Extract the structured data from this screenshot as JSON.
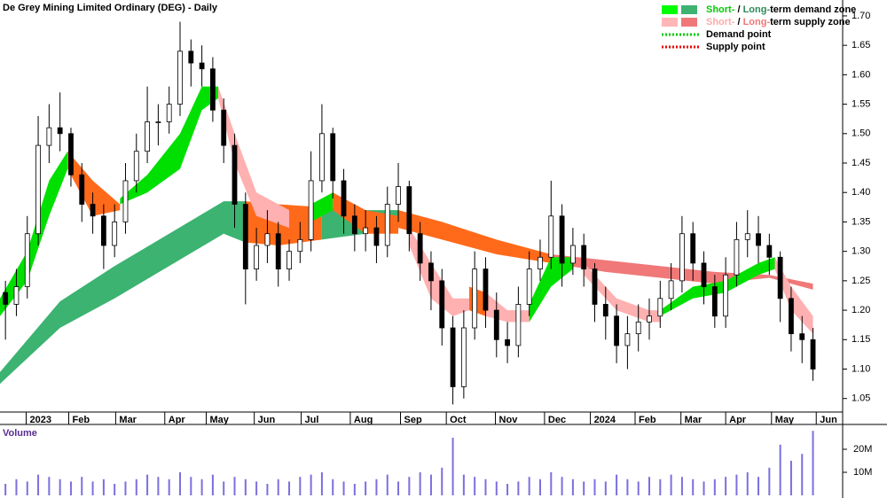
{
  "chart_data": {
    "type": "candlestick",
    "title": "De Grey Mining Limited Ordinary (DEG) - Daily",
    "xlim": [
      -0.5,
      75.5
    ],
    "xticks": [
      {
        "value": 1.9,
        "label": "2023"
      },
      {
        "value": 5.8,
        "label": "Feb"
      },
      {
        "value": 10.1,
        "label": "Mar"
      },
      {
        "value": 14.6,
        "label": "Apr"
      },
      {
        "value": 18.4,
        "label": "May"
      },
      {
        "value": 22.8,
        "label": "Jun"
      },
      {
        "value": 27.1,
        "label": "Jul"
      },
      {
        "value": 31.6,
        "label": "Aug"
      },
      {
        "value": 36.2,
        "label": "Sep"
      },
      {
        "value": 40.4,
        "label": "Oct"
      },
      {
        "value": 44.9,
        "label": "Nov"
      },
      {
        "value": 49.4,
        "label": "Dec"
      },
      {
        "value": 53.6,
        "label": "2024"
      },
      {
        "value": 57.7,
        "label": "Feb"
      },
      {
        "value": 61.9,
        "label": "Mar"
      },
      {
        "value": 66.0,
        "label": "Apr"
      },
      {
        "value": 70.2,
        "label": "May"
      },
      {
        "value": 74.3,
        "label": "Jun"
      }
    ],
    "ylim": [
      1.027,
      1.727
    ],
    "yticks": [
      {
        "value": 1.7,
        "label": "1.70"
      },
      1.65,
      {
        "value": 1.6,
        "label": "1.60"
      },
      1.55,
      {
        "value": 1.5,
        "label": "1.50"
      },
      1.45,
      {
        "value": 1.4,
        "label": "1.40"
      },
      1.35,
      {
        "value": 1.3,
        "label": "1.30"
      },
      1.25,
      {
        "value": 1.2,
        "label": "1.20"
      },
      1.15,
      {
        "value": 1.1,
        "label": "1.10"
      },
      1.05
    ],
    "up_color": "#ffffff",
    "down_color": "#000000",
    "open": [
      1.23,
      1.21,
      1.24,
      1.33,
      1.48,
      1.51,
      1.5,
      1.43,
      1.38,
      1.36,
      1.31,
      1.35,
      1.42,
      1.47,
      1.52,
      1.52,
      1.55,
      1.64,
      1.62,
      1.61,
      1.54,
      1.48,
      1.38,
      1.27,
      1.31,
      1.33,
      1.27,
      1.3,
      1.32,
      1.42,
      1.5,
      1.42,
      1.36,
      1.33,
      1.34,
      1.31,
      1.38,
      1.41,
      1.33,
      1.28,
      1.25,
      1.17,
      1.07,
      1.17,
      1.27,
      1.2,
      1.15,
      1.14,
      1.21,
      1.27,
      1.29,
      1.36,
      1.28,
      1.31,
      1.27,
      1.21,
      1.19,
      1.14,
      1.16,
      1.18,
      1.19,
      1.22,
      1.25,
      1.33,
      1.28,
      1.24,
      1.19,
      1.26,
      1.32,
      1.33,
      1.31,
      1.29,
      1.22,
      1.16,
      1.15
    ],
    "high": [
      1.25,
      1.27,
      1.36,
      1.53,
      1.55,
      1.57,
      1.51,
      1.45,
      1.4,
      1.38,
      1.38,
      1.45,
      1.5,
      1.58,
      1.55,
      1.58,
      1.69,
      1.66,
      1.65,
      1.63,
      1.56,
      1.5,
      1.4,
      1.34,
      1.37,
      1.35,
      1.32,
      1.35,
      1.47,
      1.55,
      1.51,
      1.44,
      1.38,
      1.37,
      1.36,
      1.41,
      1.45,
      1.42,
      1.35,
      1.3,
      1.27,
      1.19,
      1.2,
      1.3,
      1.29,
      1.23,
      1.18,
      1.24,
      1.3,
      1.32,
      1.42,
      1.38,
      1.34,
      1.33,
      1.28,
      1.24,
      1.21,
      1.19,
      1.21,
      1.22,
      1.25,
      1.28,
      1.36,
      1.35,
      1.3,
      1.26,
      1.29,
      1.35,
      1.37,
      1.36,
      1.33,
      1.3,
      1.24,
      1.19,
      1.17
    ],
    "low": [
      1.15,
      1.19,
      1.22,
      1.31,
      1.45,
      1.47,
      1.41,
      1.35,
      1.33,
      1.27,
      1.29,
      1.33,
      1.4,
      1.45,
      1.48,
      1.5,
      1.53,
      1.58,
      1.58,
      1.52,
      1.45,
      1.34,
      1.21,
      1.25,
      1.28,
      1.24,
      1.25,
      1.28,
      1.3,
      1.4,
      1.39,
      1.33,
      1.3,
      1.3,
      1.28,
      1.29,
      1.35,
      1.3,
      1.25,
      1.2,
      1.14,
      1.04,
      1.05,
      1.15,
      1.17,
      1.12,
      1.11,
      1.12,
      1.19,
      1.25,
      1.27,
      1.24,
      1.26,
      1.24,
      1.18,
      1.15,
      1.11,
      1.1,
      1.13,
      1.15,
      1.17,
      1.2,
      1.23,
      1.25,
      1.21,
      1.17,
      1.17,
      1.24,
      1.29,
      1.28,
      1.26,
      1.18,
      1.13,
      1.11,
      1.08
    ],
    "close": [
      1.21,
      1.24,
      1.33,
      1.48,
      1.51,
      1.5,
      1.43,
      1.38,
      1.36,
      1.31,
      1.35,
      1.42,
      1.47,
      1.52,
      1.52,
      1.55,
      1.64,
      1.62,
      1.61,
      1.54,
      1.48,
      1.38,
      1.27,
      1.31,
      1.33,
      1.27,
      1.3,
      1.32,
      1.42,
      1.5,
      1.42,
      1.36,
      1.33,
      1.34,
      1.31,
      1.38,
      1.41,
      1.33,
      1.28,
      1.25,
      1.17,
      1.07,
      1.17,
      1.27,
      1.2,
      1.15,
      1.14,
      1.21,
      1.27,
      1.29,
      1.36,
      1.28,
      1.31,
      1.27,
      1.21,
      1.19,
      1.14,
      1.16,
      1.18,
      1.19,
      1.22,
      1.25,
      1.33,
      1.28,
      1.24,
      1.19,
      1.26,
      1.32,
      1.33,
      1.31,
      1.29,
      1.22,
      1.16,
      1.15,
      1.1
    ],
    "zones": [
      {
        "color": "#3cb371",
        "x": [
          -0.5,
          5,
          10,
          15,
          20,
          22
        ],
        "upper": [
          1.095,
          1.215,
          1.275,
          1.33,
          1.385,
          1.385
        ],
        "lower": [
          1.075,
          1.17,
          1.22,
          1.275,
          1.33,
          1.315
        ]
      },
      {
        "color": "#ff6a1a",
        "x": [
          22,
          25,
          29
        ],
        "upper": [
          1.385,
          1.38,
          1.375
        ],
        "lower": [
          1.315,
          1.31,
          1.32
        ]
      },
      {
        "color": "#3cb371",
        "x": [
          29,
          33,
          36
        ],
        "upper": [
          1.375,
          1.37,
          1.37
        ],
        "lower": [
          1.32,
          1.33,
          1.34
        ]
      },
      {
        "color": "#ff6a1a",
        "x": [
          36,
          40,
          45,
          50
        ],
        "upper": [
          1.37,
          1.35,
          1.32,
          1.295
        ],
        "lower": [
          1.34,
          1.32,
          1.295,
          1.28
        ]
      },
      {
        "color": "#f07878",
        "x": [
          50,
          55,
          60,
          65,
          70,
          74
        ],
        "upper": [
          1.295,
          1.285,
          1.275,
          1.265,
          1.26,
          1.245
        ],
        "lower": [
          1.28,
          1.265,
          1.255,
          1.245,
          1.255,
          1.235
        ]
      },
      {
        "color": "#00e000",
        "x": [
          -0.5,
          2,
          4,
          5.7
        ],
        "upper": [
          1.22,
          1.3,
          1.42,
          1.47
        ],
        "lower": [
          1.19,
          1.25,
          1.36,
          1.44
        ]
      },
      {
        "color": "#ff6a1a",
        "x": [
          5.7,
          8,
          10.5
        ],
        "upper": [
          1.47,
          1.42,
          1.38
        ],
        "lower": [
          1.44,
          1.36,
          1.37
        ]
      },
      {
        "color": "#00e000",
        "x": [
          10.5,
          13,
          16,
          18,
          19.5
        ],
        "upper": [
          1.39,
          1.43,
          1.5,
          1.58,
          1.58
        ],
        "lower": [
          1.38,
          1.4,
          1.44,
          1.54,
          1.56
        ]
      },
      {
        "color": "#ffb0b0",
        "x": [
          19.5,
          21,
          23,
          26
        ],
        "upper": [
          1.58,
          1.5,
          1.4,
          1.37
        ],
        "lower": [
          1.56,
          1.45,
          1.36,
          1.34
        ]
      },
      {
        "color": "#00e000",
        "x": [
          28,
          30
        ],
        "upper": [
          1.38,
          1.4
        ],
        "lower": [
          1.35,
          1.37
        ]
      },
      {
        "color": "#ff6a1a",
        "x": [
          30,
          33,
          36
        ],
        "upper": [
          1.4,
          1.37,
          1.36
        ],
        "lower": [
          1.37,
          1.33,
          1.33
        ]
      },
      {
        "color": "#ffb0b0",
        "x": [
          37,
          39,
          41,
          42.5
        ],
        "upper": [
          1.34,
          1.28,
          1.22,
          1.22
        ],
        "lower": [
          1.31,
          1.22,
          1.19,
          1.2
        ]
      },
      {
        "color": "#ff6a1a",
        "x": [
          42.5,
          44
        ],
        "upper": [
          1.24,
          1.23
        ],
        "lower": [
          1.2,
          1.19
        ]
      },
      {
        "color": "#ffb0b0",
        "x": [
          44,
          46,
          48
        ],
        "upper": [
          1.23,
          1.2,
          1.2
        ],
        "lower": [
          1.19,
          1.18,
          1.18
        ]
      },
      {
        "color": "#00e000",
        "x": [
          48,
          50,
          52
        ],
        "upper": [
          1.21,
          1.29,
          1.29
        ],
        "lower": [
          1.18,
          1.24,
          1.27
        ]
      },
      {
        "color": "#ffb0b0",
        "x": [
          53,
          56,
          59,
          60
        ],
        "upper": [
          1.28,
          1.22,
          1.2,
          1.2
        ],
        "lower": [
          1.26,
          1.2,
          1.18,
          1.18
        ]
      },
      {
        "color": "#00e000",
        "x": [
          60,
          63,
          66,
          69,
          70.5
        ],
        "upper": [
          1.2,
          1.24,
          1.25,
          1.28,
          1.29
        ],
        "lower": [
          1.19,
          1.22,
          1.23,
          1.26,
          1.27
        ]
      },
      {
        "color": "#ffb0b0",
        "x": [
          70.5,
          72,
          74
        ],
        "upper": [
          1.29,
          1.24,
          1.19
        ],
        "lower": [
          1.27,
          1.2,
          1.16
        ]
      }
    ],
    "legend": [
      {
        "swatches": [
          "#00ff00",
          "#3cb371"
        ],
        "parts": [
          {
            "text": "Short-",
            "color": "#00cc00"
          },
          {
            "text": " / ",
            "color": "#000000"
          },
          {
            "text": "Long-",
            "color": "#2e8b57"
          },
          {
            "text": "term demand zone",
            "color": "#000000"
          }
        ]
      },
      {
        "swatches": [
          "#ffb6b6",
          "#f07878"
        ],
        "parts": [
          {
            "text": "Short-",
            "color": "#ffaaaa"
          },
          {
            "text": " / ",
            "color": "#000000"
          },
          {
            "text": "Long-",
            "color": "#f07878"
          },
          {
            "text": "term supply zone",
            "color": "#000000"
          }
        ]
      },
      {
        "dotted": "#00cc00",
        "parts": [
          {
            "text": "Demand point",
            "color": "#000000"
          }
        ]
      },
      {
        "dotted": "#ee0000",
        "parts": [
          {
            "text": "Supply point",
            "color": "#000000"
          }
        ]
      }
    ],
    "volume": {
      "label": "Volume",
      "color": "#7b6fe0",
      "ylim": [
        0,
        30000000
      ],
      "yticks": [
        {
          "value": 20000000,
          "label": "20M"
        },
        {
          "value": 10000000,
          "label": "10M"
        }
      ],
      "values": [
        5000000,
        7000000,
        6000000,
        9000000,
        8000000,
        7000000,
        6000000,
        8000000,
        6000000,
        7000000,
        5000000,
        6000000,
        7000000,
        9000000,
        8000000,
        7000000,
        10000000,
        8000000,
        7000000,
        9000000,
        6000000,
        8000000,
        7000000,
        6000000,
        5000000,
        7000000,
        6000000,
        8000000,
        9000000,
        10000000,
        7000000,
        6000000,
        5000000,
        6000000,
        7000000,
        9000000,
        6000000,
        8000000,
        10000000,
        9000000,
        12000000,
        25000000,
        9000000,
        8000000,
        7000000,
        6000000,
        5000000,
        6000000,
        8000000,
        7000000,
        10000000,
        8000000,
        7000000,
        6000000,
        7000000,
        6000000,
        9000000,
        7000000,
        6000000,
        8000000,
        7000000,
        9000000,
        8000000,
        7000000,
        6000000,
        7000000,
        8000000,
        9000000,
        10000000,
        8000000,
        12000000,
        22000000,
        15000000,
        18000000,
        28000000
      ]
    }
  }
}
